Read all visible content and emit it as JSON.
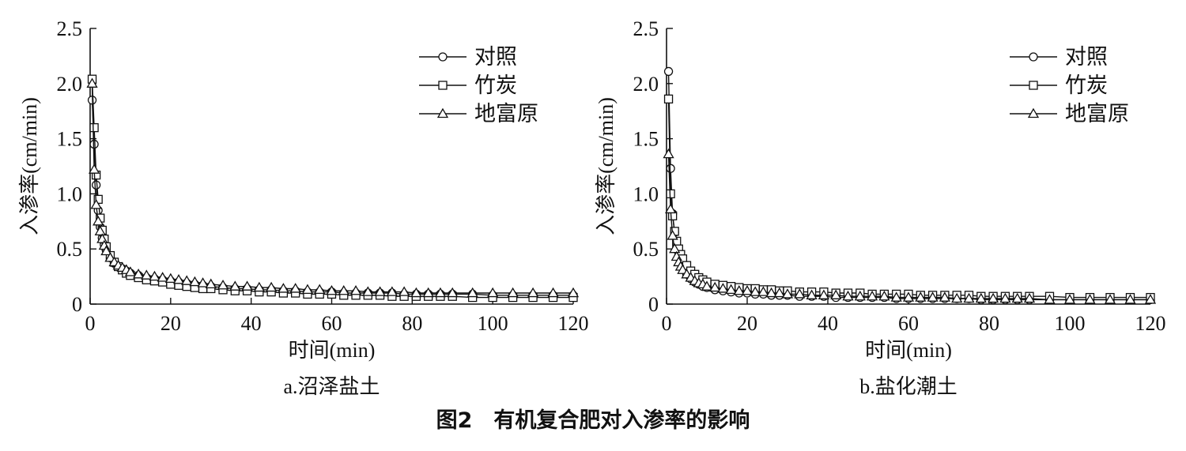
{
  "figure": {
    "caption": "图2　有机复合肥对入渗率的影响"
  },
  "chart_data": [
    {
      "type": "line",
      "subtitle": "a.沼泽盐土",
      "xlabel": "时间(min)",
      "ylabel": "入渗率(cm/min)",
      "xlim": [
        0,
        120
      ],
      "ylim": [
        0,
        2.5
      ],
      "xticks": [
        "0",
        "20",
        "40",
        "60",
        "80",
        "100",
        "120"
      ],
      "yticks": [
        "0",
        "0.5",
        "1.0",
        "1.5",
        "2.0",
        "2.5"
      ],
      "legend": {
        "placement": "top-right"
      },
      "series": [
        {
          "name": "对照",
          "marker": "circle",
          "x": [
            0.5,
            1,
            1.5,
            2,
            2.5,
            3,
            3.5,
            4,
            5,
            6,
            7,
            8,
            9,
            10,
            12,
            14,
            16,
            18,
            20,
            22,
            24,
            26,
            28,
            30,
            33,
            36,
            39,
            42,
            45,
            48,
            51,
            54,
            57,
            60,
            63,
            66,
            69,
            72,
            75,
            78,
            81,
            84,
            87,
            90,
            95,
            100,
            105,
            110,
            115,
            120
          ],
          "y": [
            1.85,
            1.45,
            1.08,
            0.85,
            0.7,
            0.6,
            0.54,
            0.49,
            0.42,
            0.37,
            0.34,
            0.32,
            0.3,
            0.28,
            0.26,
            0.24,
            0.23,
            0.22,
            0.21,
            0.2,
            0.19,
            0.18,
            0.17,
            0.16,
            0.15,
            0.14,
            0.14,
            0.13,
            0.13,
            0.12,
            0.12,
            0.11,
            0.11,
            0.11,
            0.1,
            0.1,
            0.1,
            0.1,
            0.1,
            0.09,
            0.09,
            0.09,
            0.09,
            0.09,
            0.09,
            0.08,
            0.08,
            0.08,
            0.08,
            0.08
          ]
        },
        {
          "name": "竹炭",
          "marker": "square",
          "x": [
            0.5,
            1,
            1.5,
            2,
            2.5,
            3,
            3.5,
            4,
            5,
            6,
            7,
            8,
            9,
            10,
            12,
            14,
            16,
            18,
            20,
            22,
            24,
            26,
            28,
            30,
            33,
            36,
            39,
            42,
            45,
            48,
            51,
            54,
            57,
            60,
            63,
            66,
            69,
            72,
            75,
            78,
            81,
            84,
            87,
            90,
            95,
            100,
            105,
            110,
            115,
            120
          ],
          "y": [
            2.04,
            1.6,
            1.17,
            0.95,
            0.78,
            0.67,
            0.59,
            0.52,
            0.44,
            0.38,
            0.34,
            0.31,
            0.28,
            0.26,
            0.24,
            0.22,
            0.21,
            0.2,
            0.18,
            0.17,
            0.16,
            0.15,
            0.14,
            0.14,
            0.13,
            0.12,
            0.12,
            0.11,
            0.11,
            0.1,
            0.1,
            0.09,
            0.09,
            0.09,
            0.08,
            0.08,
            0.08,
            0.08,
            0.07,
            0.07,
            0.07,
            0.07,
            0.07,
            0.07,
            0.06,
            0.06,
            0.06,
            0.06,
            0.06,
            0.06
          ]
        },
        {
          "name": "地富原",
          "marker": "triangle",
          "x": [
            0.5,
            1,
            1.5,
            2,
            2.5,
            3,
            3.5,
            4,
            5,
            6,
            7,
            8,
            9,
            10,
            12,
            14,
            16,
            18,
            20,
            22,
            24,
            26,
            28,
            30,
            33,
            36,
            39,
            42,
            45,
            48,
            51,
            54,
            57,
            60,
            63,
            66,
            69,
            72,
            75,
            78,
            81,
            84,
            87,
            90,
            95,
            100,
            105,
            110,
            115,
            120
          ],
          "y": [
            2.0,
            1.22,
            0.9,
            0.75,
            0.66,
            0.59,
            0.53,
            0.48,
            0.42,
            0.38,
            0.35,
            0.33,
            0.31,
            0.29,
            0.27,
            0.26,
            0.25,
            0.24,
            0.23,
            0.22,
            0.21,
            0.2,
            0.19,
            0.18,
            0.17,
            0.16,
            0.16,
            0.15,
            0.15,
            0.14,
            0.14,
            0.13,
            0.13,
            0.12,
            0.12,
            0.12,
            0.11,
            0.11,
            0.11,
            0.11,
            0.1,
            0.1,
            0.1,
            0.1,
            0.1,
            0.1,
            0.1,
            0.1,
            0.1,
            0.1
          ]
        }
      ]
    },
    {
      "type": "line",
      "subtitle": "b.盐化潮土",
      "xlabel": "时间(min)",
      "ylabel": "入渗率(cm/min)",
      "xlim": [
        0,
        120
      ],
      "ylim": [
        0,
        2.5
      ],
      "xticks": [
        "0",
        "20",
        "40",
        "60",
        "80",
        "100",
        "120"
      ],
      "yticks": [
        "0",
        "0.5",
        "1.0",
        "1.5",
        "2.0",
        "2.5"
      ],
      "legend": {
        "placement": "top-right"
      },
      "series": [
        {
          "name": "对照",
          "marker": "circle",
          "x": [
            0.5,
            1,
            1.5,
            2,
            2.5,
            3,
            3.5,
            4,
            5,
            6,
            7,
            8,
            9,
            10,
            12,
            14,
            16,
            18,
            20,
            22,
            24,
            26,
            28,
            30,
            33,
            36,
            39,
            42,
            45,
            48,
            51,
            54,
            57,
            60,
            63,
            66,
            69,
            72,
            75,
            78,
            81,
            84,
            87,
            90,
            95,
            100,
            105,
            110,
            115,
            120
          ],
          "y": [
            2.11,
            1.23,
            0.82,
            0.65,
            0.52,
            0.44,
            0.38,
            0.33,
            0.27,
            0.23,
            0.2,
            0.18,
            0.16,
            0.15,
            0.13,
            0.12,
            0.11,
            0.1,
            0.1,
            0.09,
            0.09,
            0.08,
            0.08,
            0.08,
            0.07,
            0.07,
            0.07,
            0.06,
            0.06,
            0.06,
            0.06,
            0.06,
            0.05,
            0.05,
            0.05,
            0.05,
            0.05,
            0.05,
            0.05,
            0.04,
            0.04,
            0.04,
            0.04,
            0.04,
            0.04,
            0.04,
            0.04,
            0.04,
            0.04,
            0.04
          ]
        },
        {
          "name": "竹炭",
          "marker": "square",
          "x": [
            0.5,
            1,
            1.5,
            2,
            2.5,
            3,
            3.5,
            4,
            5,
            6,
            7,
            8,
            9,
            10,
            12,
            14,
            16,
            18,
            20,
            22,
            24,
            26,
            28,
            30,
            33,
            36,
            39,
            42,
            45,
            48,
            51,
            54,
            57,
            60,
            63,
            66,
            69,
            72,
            75,
            78,
            81,
            84,
            87,
            90,
            95,
            100,
            105,
            110,
            115,
            120
          ],
          "y": [
            1.86,
            1.0,
            0.8,
            0.66,
            0.57,
            0.5,
            0.45,
            0.41,
            0.35,
            0.3,
            0.27,
            0.24,
            0.22,
            0.2,
            0.18,
            0.17,
            0.16,
            0.15,
            0.14,
            0.14,
            0.13,
            0.13,
            0.12,
            0.12,
            0.11,
            0.11,
            0.11,
            0.1,
            0.1,
            0.1,
            0.09,
            0.09,
            0.09,
            0.09,
            0.08,
            0.08,
            0.08,
            0.08,
            0.08,
            0.07,
            0.07,
            0.07,
            0.07,
            0.07,
            0.07,
            0.06,
            0.06,
            0.06,
            0.06,
            0.06
          ]
        },
        {
          "name": "地富原",
          "marker": "triangle",
          "x": [
            0.5,
            1,
            1.5,
            2,
            2.5,
            3,
            3.5,
            4,
            5,
            6,
            7,
            8,
            9,
            10,
            12,
            14,
            16,
            18,
            20,
            22,
            24,
            26,
            28,
            30,
            33,
            36,
            39,
            42,
            45,
            48,
            51,
            54,
            57,
            60,
            63,
            66,
            69,
            72,
            75,
            78,
            81,
            84,
            87,
            90,
            95,
            100,
            105,
            110,
            115,
            120
          ],
          "y": [
            1.36,
            0.86,
            0.62,
            0.5,
            0.43,
            0.38,
            0.34,
            0.31,
            0.27,
            0.24,
            0.21,
            0.19,
            0.18,
            0.16,
            0.15,
            0.14,
            0.13,
            0.12,
            0.12,
            0.11,
            0.11,
            0.1,
            0.1,
            0.09,
            0.09,
            0.08,
            0.08,
            0.08,
            0.07,
            0.07,
            0.07,
            0.07,
            0.06,
            0.06,
            0.06,
            0.06,
            0.06,
            0.05,
            0.05,
            0.05,
            0.05,
            0.05,
            0.05,
            0.05,
            0.04,
            0.04,
            0.04,
            0.04,
            0.04,
            0.04
          ]
        }
      ]
    }
  ]
}
